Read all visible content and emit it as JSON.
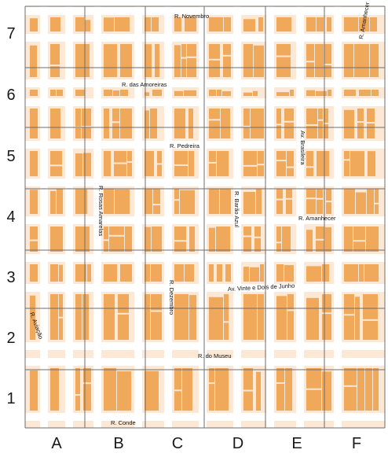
{
  "colors": {
    "background": "#fde8d5",
    "street": "#ffffff",
    "building": "#f0a95a",
    "grid_line": "#6d6d6d"
  },
  "grid": {
    "rows": [
      "7",
      "6",
      "5",
      "4",
      "3",
      "2",
      "1"
    ],
    "columns": [
      "A",
      "B",
      "C",
      "D",
      "E",
      "F"
    ]
  },
  "streets": {
    "novembro": "R. Novembro",
    "amoreiras": "R. das Amoreiras",
    "pedreira": "R. Pedreira",
    "rosas_amarelas": "R. Rosas Amarelas",
    "barao_azul": "R. Barão Azul",
    "brasileira": "Av. Brasileira",
    "amanhecer_e": "R. Amanhecer",
    "amanhecer_f": "R. Amanhecer",
    "dezembro": "R. Dezembro",
    "vinte_dois_junho": "Av. Vinte e Dois de Junho",
    "aviacao": "R. Aviação",
    "museu": "R. do Museu",
    "conde": "R. Conde"
  }
}
